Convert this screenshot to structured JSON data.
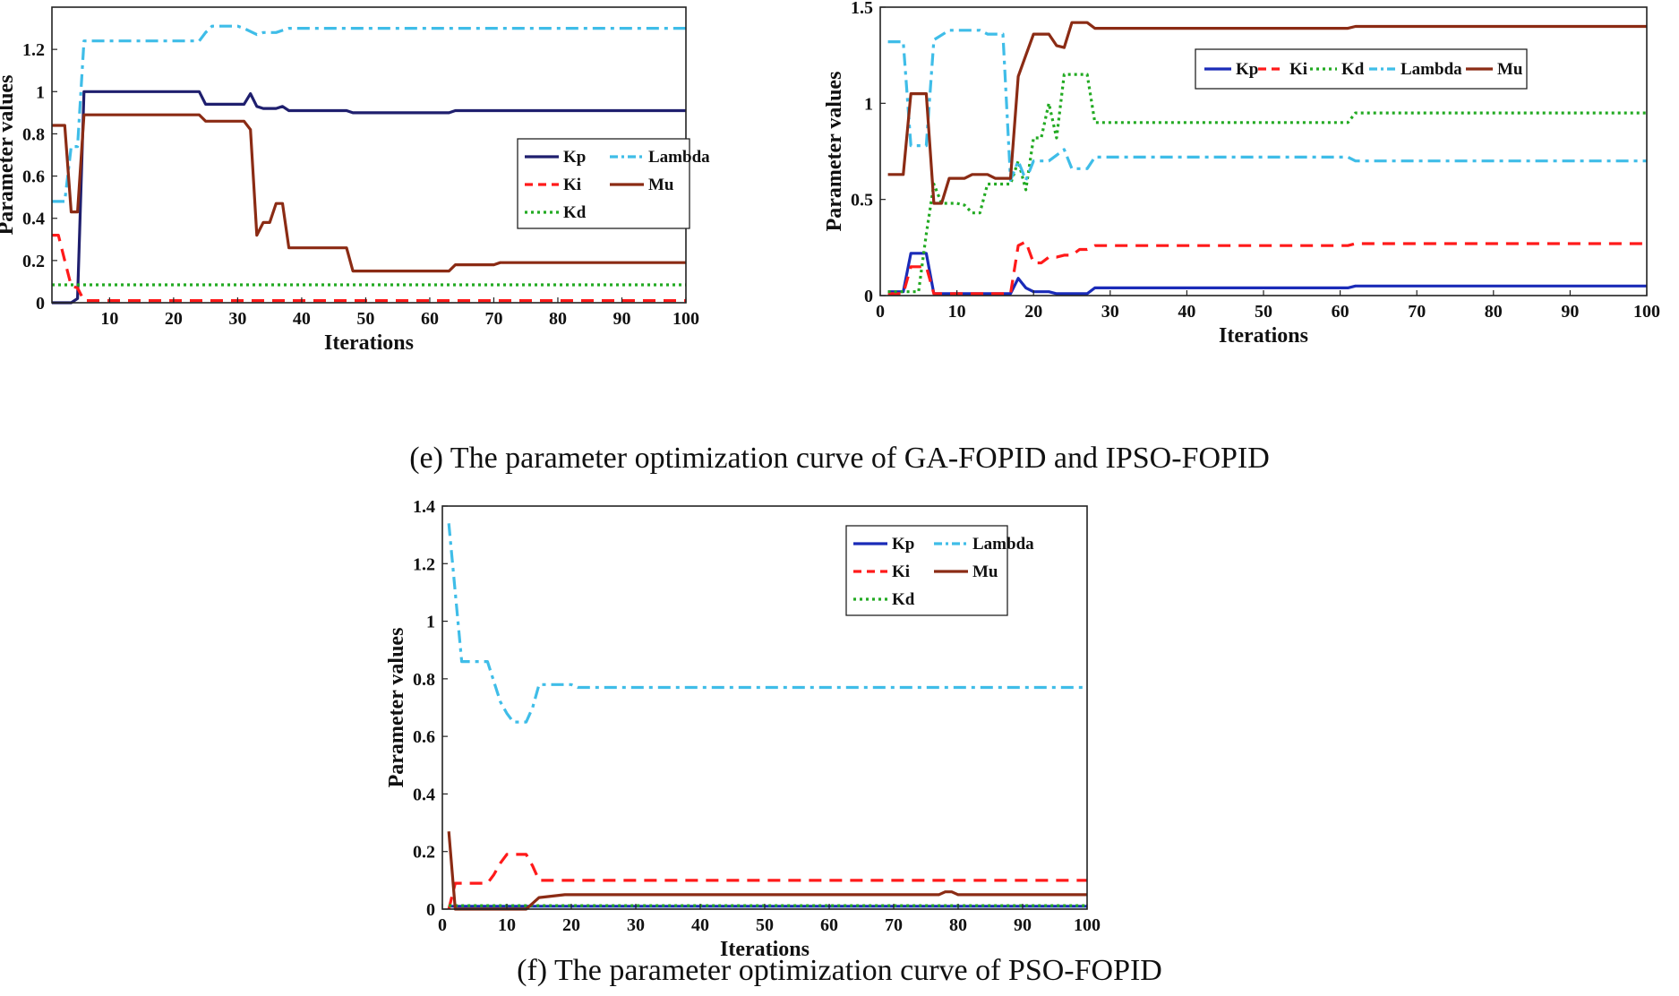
{
  "captions": {
    "e": "(e) The parameter optimization curve of GA-FOPID and IPSO-FOPID",
    "f": "(f) The parameter optimization curve of PSO-FOPID"
  },
  "chart_data": [
    {
      "type": "line",
      "panel": "GA-FOPID",
      "xlabel": "Iterations",
      "ylabel": "Parameter values",
      "xlim": [
        1,
        100
      ],
      "ylim": [
        0,
        1.4
      ],
      "xticks": [
        10,
        20,
        30,
        40,
        50,
        60,
        70,
        80,
        90,
        100
      ],
      "yticks": [
        0,
        0.2,
        0.4,
        0.6,
        0.8,
        1,
        1.2
      ],
      "ytick_labels": [
        "0",
        "0.2",
        "0.4",
        "0.6",
        "0.8",
        "1",
        "1.2"
      ],
      "grid": false,
      "legend_placement": "center-right",
      "legend_columns": 2,
      "legend_order": [
        "Kp",
        "Lambda",
        "Ki",
        "Mu",
        "Kd"
      ],
      "series": [
        {
          "name": "Kp",
          "color": "#1f1f6e",
          "dash": "solid",
          "x": [
            1,
            4,
            5,
            6,
            7,
            24,
            25,
            26,
            31,
            32,
            33,
            34,
            36,
            37,
            38,
            39,
            40,
            47,
            48,
            49,
            63,
            64,
            100
          ],
          "y": [
            0,
            0,
            0.02,
            1.0,
            1.0,
            1.0,
            0.94,
            0.94,
            0.94,
            0.99,
            0.93,
            0.92,
            0.92,
            0.93,
            0.91,
            0.91,
            0.91,
            0.91,
            0.9,
            0.9,
            0.9,
            0.91,
            0.91
          ]
        },
        {
          "name": "Ki",
          "color": "#ff1a1a",
          "dash": "dashed",
          "x": [
            1,
            2,
            3,
            4,
            5,
            6,
            100
          ],
          "y": [
            0.32,
            0.32,
            0.2,
            0.08,
            0.07,
            0.01,
            0.01
          ]
        },
        {
          "name": "Kd",
          "color": "#22aa22",
          "dash": "dotted",
          "x": [
            1,
            100
          ],
          "y": [
            0.085,
            0.085
          ]
        },
        {
          "name": "Lambda",
          "color": "#3fbde8",
          "dash": "dashdot",
          "x": [
            1,
            2,
            3,
            4,
            5,
            6,
            24,
            25,
            26,
            30,
            31,
            33,
            34,
            36,
            37,
            38,
            100
          ],
          "y": [
            0.48,
            0.48,
            0.48,
            0.74,
            0.74,
            1.24,
            1.24,
            1.28,
            1.31,
            1.31,
            1.3,
            1.27,
            1.28,
            1.28,
            1.29,
            1.3,
            1.3
          ]
        },
        {
          "name": "Mu",
          "color": "#8b2b14",
          "dash": "solid",
          "x": [
            1,
            2,
            3,
            4,
            5,
            6,
            24,
            25,
            26,
            31,
            32,
            33,
            34,
            35,
            36,
            37,
            38,
            39,
            47,
            48,
            49,
            63,
            64,
            70,
            71,
            72,
            100
          ],
          "y": [
            0.84,
            0.84,
            0.84,
            0.43,
            0.43,
            0.89,
            0.89,
            0.86,
            0.86,
            0.86,
            0.82,
            0.32,
            0.38,
            0.38,
            0.47,
            0.47,
            0.26,
            0.26,
            0.26,
            0.15,
            0.15,
            0.15,
            0.18,
            0.18,
            0.19,
            0.19,
            0.19
          ]
        }
      ]
    },
    {
      "type": "line",
      "panel": "IPSO-FOPID",
      "xlabel": "Iterations",
      "ylabel": "Parameter values",
      "xlim": [
        0,
        100
      ],
      "ylim": [
        0,
        1.5
      ],
      "xticks": [
        0,
        10,
        20,
        30,
        40,
        50,
        60,
        70,
        80,
        90,
        100
      ],
      "yticks": [
        0,
        0.5,
        1,
        1.5
      ],
      "ytick_labels": [
        "0",
        "0.5",
        "1",
        "1.5"
      ],
      "grid": false,
      "legend_placement": "top-right",
      "legend_columns": 5,
      "legend_order": [
        "Kp",
        "Ki",
        "Kd",
        "Lambda",
        "Mu"
      ],
      "series": [
        {
          "name": "Kp",
          "color": "#1a2bb8",
          "dash": "solid",
          "x": [
            1,
            3,
            4,
            6,
            7,
            17,
            18,
            19,
            20,
            22,
            23,
            24,
            27,
            28,
            61,
            62,
            100
          ],
          "y": [
            0.02,
            0.02,
            0.22,
            0.22,
            0.01,
            0.01,
            0.09,
            0.04,
            0.02,
            0.02,
            0.01,
            0.01,
            0.01,
            0.04,
            0.04,
            0.05,
            0.05
          ]
        },
        {
          "name": "Ki",
          "color": "#ff1a1a",
          "dash": "dashed",
          "x": [
            1,
            3,
            4,
            6,
            7,
            17,
            18,
            19,
            20,
            21,
            22,
            23,
            24,
            25,
            26,
            27,
            28,
            61,
            62,
            100
          ],
          "y": [
            0.01,
            0.01,
            0.15,
            0.15,
            0.01,
            0.01,
            0.26,
            0.28,
            0.17,
            0.17,
            0.2,
            0.2,
            0.21,
            0.21,
            0.24,
            0.24,
            0.26,
            0.26,
            0.27,
            0.27
          ]
        },
        {
          "name": "Kd",
          "color": "#22aa22",
          "dash": "dotted",
          "x": [
            1,
            5,
            6,
            7,
            8,
            10,
            11,
            12,
            13,
            14,
            15,
            17,
            18,
            19,
            20,
            21,
            22,
            23,
            24,
            25,
            27,
            28,
            61,
            62,
            100
          ],
          "y": [
            0.02,
            0.02,
            0.32,
            0.58,
            0.48,
            0.48,
            0.47,
            0.43,
            0.43,
            0.58,
            0.58,
            0.58,
            0.7,
            0.55,
            0.82,
            0.82,
            1.0,
            0.82,
            1.15,
            1.15,
            1.15,
            0.9,
            0.9,
            0.95,
            0.95
          ]
        },
        {
          "name": "Lambda",
          "color": "#3fbde8",
          "dash": "dashdot",
          "x": [
            1,
            3,
            4,
            6,
            7,
            9,
            13,
            14,
            16,
            17,
            18,
            19,
            20,
            22,
            23,
            24,
            25,
            26,
            27,
            28,
            61,
            62,
            100
          ],
          "y": [
            1.32,
            1.32,
            0.78,
            0.78,
            1.33,
            1.38,
            1.38,
            1.36,
            1.36,
            0.6,
            0.7,
            0.6,
            0.7,
            0.7,
            0.73,
            0.76,
            0.66,
            0.66,
            0.66,
            0.72,
            0.72,
            0.7,
            0.7
          ]
        },
        {
          "name": "Mu",
          "color": "#8b2b14",
          "dash": "solid",
          "x": [
            1,
            3,
            4,
            6,
            7,
            8,
            9,
            11,
            12,
            14,
            15,
            17,
            18,
            19,
            20,
            22,
            23,
            24,
            25,
            27,
            28,
            61,
            62,
            100
          ],
          "y": [
            0.63,
            0.63,
            1.05,
            1.05,
            0.48,
            0.48,
            0.61,
            0.61,
            0.63,
            0.63,
            0.61,
            0.61,
            1.14,
            1.25,
            1.36,
            1.36,
            1.3,
            1.29,
            1.42,
            1.42,
            1.39,
            1.39,
            1.4,
            1.4
          ]
        }
      ]
    },
    {
      "type": "line",
      "panel": "PSO-FOPID",
      "xlabel": "Iterations",
      "ylabel": "Parameter values",
      "xlim": [
        0,
        100
      ],
      "ylim": [
        0,
        1.4
      ],
      "xticks": [
        0,
        10,
        20,
        30,
        40,
        50,
        60,
        70,
        80,
        90,
        100
      ],
      "yticks": [
        0,
        0.2,
        0.4,
        0.6,
        0.8,
        1,
        1.2,
        1.4
      ],
      "ytick_labels": [
        "0",
        "0.2",
        "0.4",
        "0.6",
        "0.8",
        "1",
        "1.2",
        "1.4"
      ],
      "grid": false,
      "legend_placement": "top-right",
      "legend_columns": 2,
      "legend_order": [
        "Kp",
        "Lambda",
        "Ki",
        "Mu",
        "Kd"
      ],
      "series": [
        {
          "name": "Kp",
          "color": "#1a2bb8",
          "dash": "solid",
          "x": [
            1,
            100
          ],
          "y": [
            0.01,
            0.01
          ]
        },
        {
          "name": "Ki",
          "color": "#ff1a1a",
          "dash": "dashed",
          "x": [
            1,
            2,
            3,
            7,
            8,
            9,
            10,
            11,
            13,
            14,
            15,
            16,
            100
          ],
          "y": [
            0.0,
            0.09,
            0.09,
            0.09,
            0.12,
            0.16,
            0.19,
            0.19,
            0.19,
            0.15,
            0.1,
            0.1,
            0.1
          ]
        },
        {
          "name": "Kd",
          "color": "#22aa22",
          "dash": "dotted",
          "x": [
            1,
            100
          ],
          "y": [
            0.012,
            0.012
          ]
        },
        {
          "name": "Lambda",
          "color": "#3fbde8",
          "dash": "dashdot",
          "x": [
            1,
            2,
            3,
            7,
            8,
            9,
            10,
            11,
            12,
            13,
            14,
            15,
            16,
            20,
            21,
            100
          ],
          "y": [
            1.34,
            1.1,
            0.86,
            0.86,
            0.79,
            0.72,
            0.68,
            0.65,
            0.65,
            0.65,
            0.7,
            0.78,
            0.78,
            0.78,
            0.77,
            0.77
          ]
        },
        {
          "name": "Mu",
          "color": "#8b2b14",
          "dash": "solid",
          "x": [
            1,
            2,
            3,
            13,
            14,
            15,
            19,
            20,
            77,
            78,
            79,
            80,
            100
          ],
          "y": [
            0.27,
            0.0,
            0.0,
            0.0,
            0.02,
            0.04,
            0.05,
            0.05,
            0.05,
            0.06,
            0.06,
            0.05,
            0.05
          ]
        }
      ]
    }
  ]
}
